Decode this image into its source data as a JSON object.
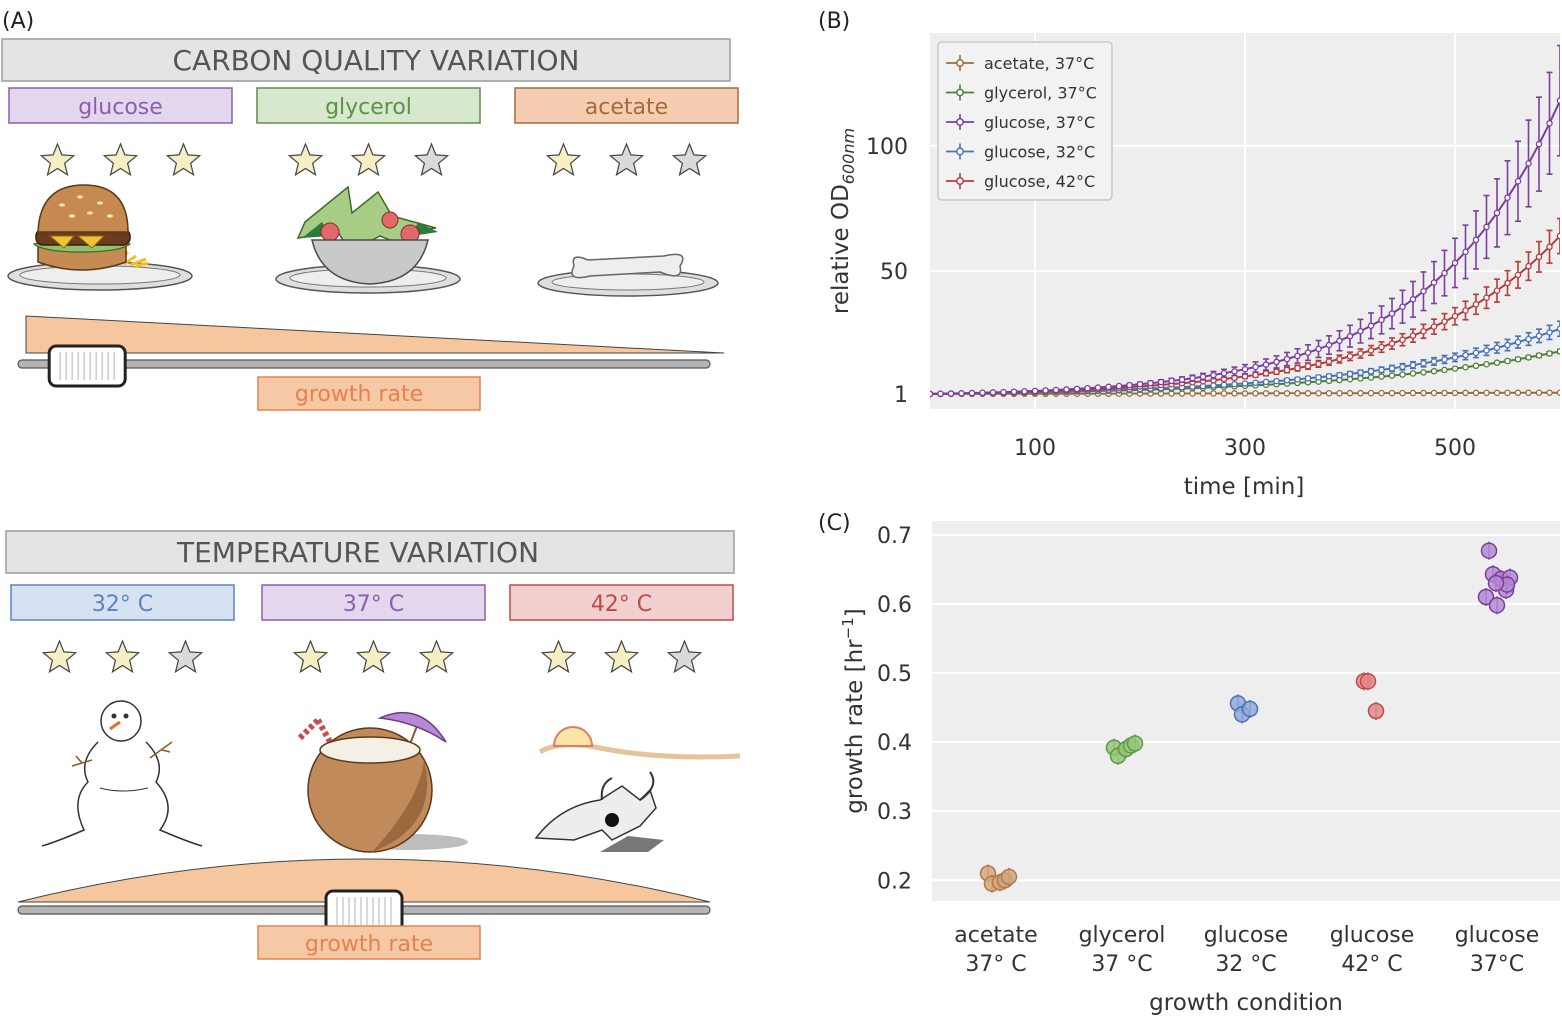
{
  "panel_labels": {
    "a": "(A)",
    "b": "(B)",
    "c": "(C)"
  },
  "panel_a": {
    "carbon": {
      "header": "CARBON QUALITY VARIATION",
      "boxes": [
        {
          "label": "glucose",
          "fill": "#e4d6ec",
          "stroke": "#8a5fb0",
          "text_color": "#8a5fb0",
          "stars": 3
        },
        {
          "label": "glycerol",
          "fill": "#d8e8cd",
          "stroke": "#5f8f4a",
          "text_color": "#5f8f4a",
          "stars": 2
        },
        {
          "label": "acetate",
          "fill": "#f5cdb0",
          "stroke": "#a46b3f",
          "text_color": "#a46b3f",
          "stars": 1
        }
      ],
      "slider_label": "growth rate",
      "slider_level": 0.1
    },
    "temperature": {
      "header": "TEMPERATURE VARIATION",
      "boxes": [
        {
          "label": "32° C",
          "fill": "#d6e2f2",
          "stroke": "#5b83c4",
          "text_color": "#5b83c4",
          "stars": 2
        },
        {
          "label": "37° C",
          "fill": "#e4d6ec",
          "stroke": "#8a5fb0",
          "text_color": "#8a5fb0",
          "stars": 3
        },
        {
          "label": "42° C",
          "fill": "#f2d0d0",
          "stroke": "#c04a4a",
          "text_color": "#c04a4a",
          "stars": 2
        }
      ],
      "slider_label": "growth rate",
      "slider_level": 0.5
    },
    "star_fill": "#f6efc4",
    "star_empty": "#dadada",
    "accent": "#f6c69e"
  },
  "chart_data": [
    {
      "type": "line",
      "panel": "B",
      "xlabel": "time [min]",
      "ylabel_main": "relative OD",
      "ylabel_sub": "600nm",
      "xlim": [
        0,
        600
      ],
      "xticks": [
        100,
        300,
        500
      ],
      "yticks": [
        1,
        50,
        100
      ],
      "ylim": [
        -5,
        145
      ],
      "grid": true,
      "legend": "top-left",
      "series": [
        {
          "name": "acetate, 37°C",
          "color": "#9b6a3c",
          "rate": 0.2,
          "end_err": 0.2
        },
        {
          "name": "glycerol, 37°C",
          "color": "#4e7f3a",
          "rate": 0.39,
          "end_err": 0.8
        },
        {
          "name": "glucose, 37°C",
          "color": "#7b3ea0",
          "rate": 0.63,
          "end_err": 22
        },
        {
          "name": "glucose, 32°C",
          "color": "#4a72b8",
          "rate": 0.45,
          "end_err": 3
        },
        {
          "name": "glucose, 42°C",
          "color": "#b83a3a",
          "rate": 0.49,
          "end_err": 7
        }
      ],
      "final_values": [
        1.5,
        18,
        118,
        27,
        64
      ]
    },
    {
      "type": "scatter",
      "panel": "C",
      "xlabel": "growth condition",
      "ylabel": "growth rate [hr",
      "ylabel_sup": "−1",
      "ylabel_end": "]",
      "ylim": [
        0.17,
        0.72
      ],
      "yticks": [
        0.2,
        0.3,
        0.4,
        0.5,
        0.6,
        0.7
      ],
      "grid": true,
      "categories": [
        {
          "line1": "acetate",
          "line2": "37° C",
          "color": "#b07a4c",
          "fill": "#d4a67e",
          "points": [
            0.21,
            0.195,
            0.197,
            0.2,
            0.205
          ]
        },
        {
          "line1": "glycerol",
          "line2": "37 °C",
          "color": "#5f9a45",
          "fill": "#96c57c",
          "points": [
            0.392,
            0.38,
            0.39,
            0.395,
            0.398
          ]
        },
        {
          "line1": "glucose",
          "line2": "32 °C",
          "color": "#4a72b8",
          "fill": "#8fa9d8",
          "points": [
            0.456,
            0.44,
            0.448
          ]
        },
        {
          "line1": "glucose",
          "line2": "42° C",
          "color": "#c04a4a",
          "fill": "#e08a8a",
          "points": [
            0.488,
            0.488,
            0.445
          ]
        },
        {
          "line1": "glucose",
          "line2": "37°C",
          "color": "#7b3ea0",
          "fill": "#b58ad2",
          "points": [
            0.677,
            0.643,
            0.636,
            0.62,
            0.638,
            0.61,
            0.598,
            0.628,
            0.63
          ]
        }
      ]
    }
  ]
}
